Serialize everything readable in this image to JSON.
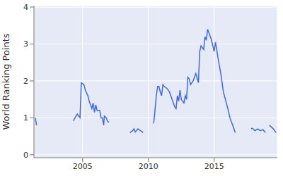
{
  "chart_data": {
    "type": "line",
    "y_label": "World Ranking Points",
    "color": "#4169e1",
    "grid": true,
    "xlim": [
      2001.3,
      2019.8
    ],
    "xticks": [
      2005,
      2010,
      2015
    ],
    "ylim": [
      -0.08,
      4.04
    ],
    "yticks": [
      0,
      1,
      2,
      3,
      4
    ],
    "x": [
      2001.4,
      2001.5,
      2003.0,
      2004.3,
      2004.5,
      2004.6,
      2004.8,
      2004.9,
      2005.1,
      2005.2,
      2005.4,
      2005.5,
      2005.6,
      2005.7,
      2005.8,
      2005.9,
      2006.0,
      2006.1,
      2006.3,
      2006.4,
      2006.5,
      2006.6,
      2006.65,
      2006.8,
      2006.9,
      2007.0,
      2007.8,
      2008.6,
      2008.8,
      2008.9,
      2009.0,
      2009.2,
      2009.4,
      2009.6,
      2010.0,
      2010.4,
      2010.5,
      2010.6,
      2010.7,
      2010.8,
      2010.9,
      2011.0,
      2011.1,
      2011.2,
      2011.4,
      2011.6,
      2011.8,
      2012.0,
      2012.1,
      2012.2,
      2012.3,
      2012.4,
      2012.5,
      2012.7,
      2012.8,
      2012.9,
      2013.0,
      2013.1,
      2013.2,
      2013.4,
      2013.6,
      2013.8,
      2013.9,
      2014.0,
      2014.2,
      2014.3,
      2014.4,
      2014.5,
      2014.6,
      2014.8,
      2015.0,
      2015.1,
      2015.3,
      2015.5,
      2015.7,
      2016.0,
      2016.2,
      2016.4,
      2016.6,
      2017.2,
      2017.8,
      2017.9,
      2018.1,
      2018.3,
      2018.5,
      2018.7,
      2018.9,
      2019.05,
      2019.2,
      2019.5,
      2019.7
    ],
    "values": [
      1.0,
      0.8,
      null,
      0.92,
      1.05,
      1.1,
      1.0,
      1.95,
      1.9,
      1.75,
      1.6,
      1.45,
      1.35,
      1.25,
      1.4,
      1.15,
      1.35,
      1.2,
      1.2,
      1.0,
      1.0,
      0.8,
      1.05,
      1.0,
      0.9,
      0.88,
      null,
      0.6,
      0.65,
      0.7,
      0.62,
      0.7,
      0.65,
      0.6,
      null,
      0.85,
      1.2,
      1.6,
      1.85,
      1.85,
      1.7,
      1.6,
      1.9,
      1.85,
      1.8,
      1.7,
      1.5,
      1.3,
      1.25,
      1.6,
      1.45,
      1.75,
      1.5,
      1.4,
      1.6,
      1.5,
      2.1,
      2.05,
      1.9,
      2.0,
      2.2,
      1.95,
      2.8,
      2.95,
      2.85,
      3.2,
      3.1,
      3.4,
      3.3,
      3.1,
      2.8,
      3.05,
      2.6,
      2.2,
      1.7,
      1.3,
      1.0,
      0.8,
      0.6,
      null,
      0.7,
      0.72,
      0.65,
      0.7,
      0.65,
      0.68,
      0.6,
      null,
      0.8,
      0.7,
      0.6
    ]
  }
}
